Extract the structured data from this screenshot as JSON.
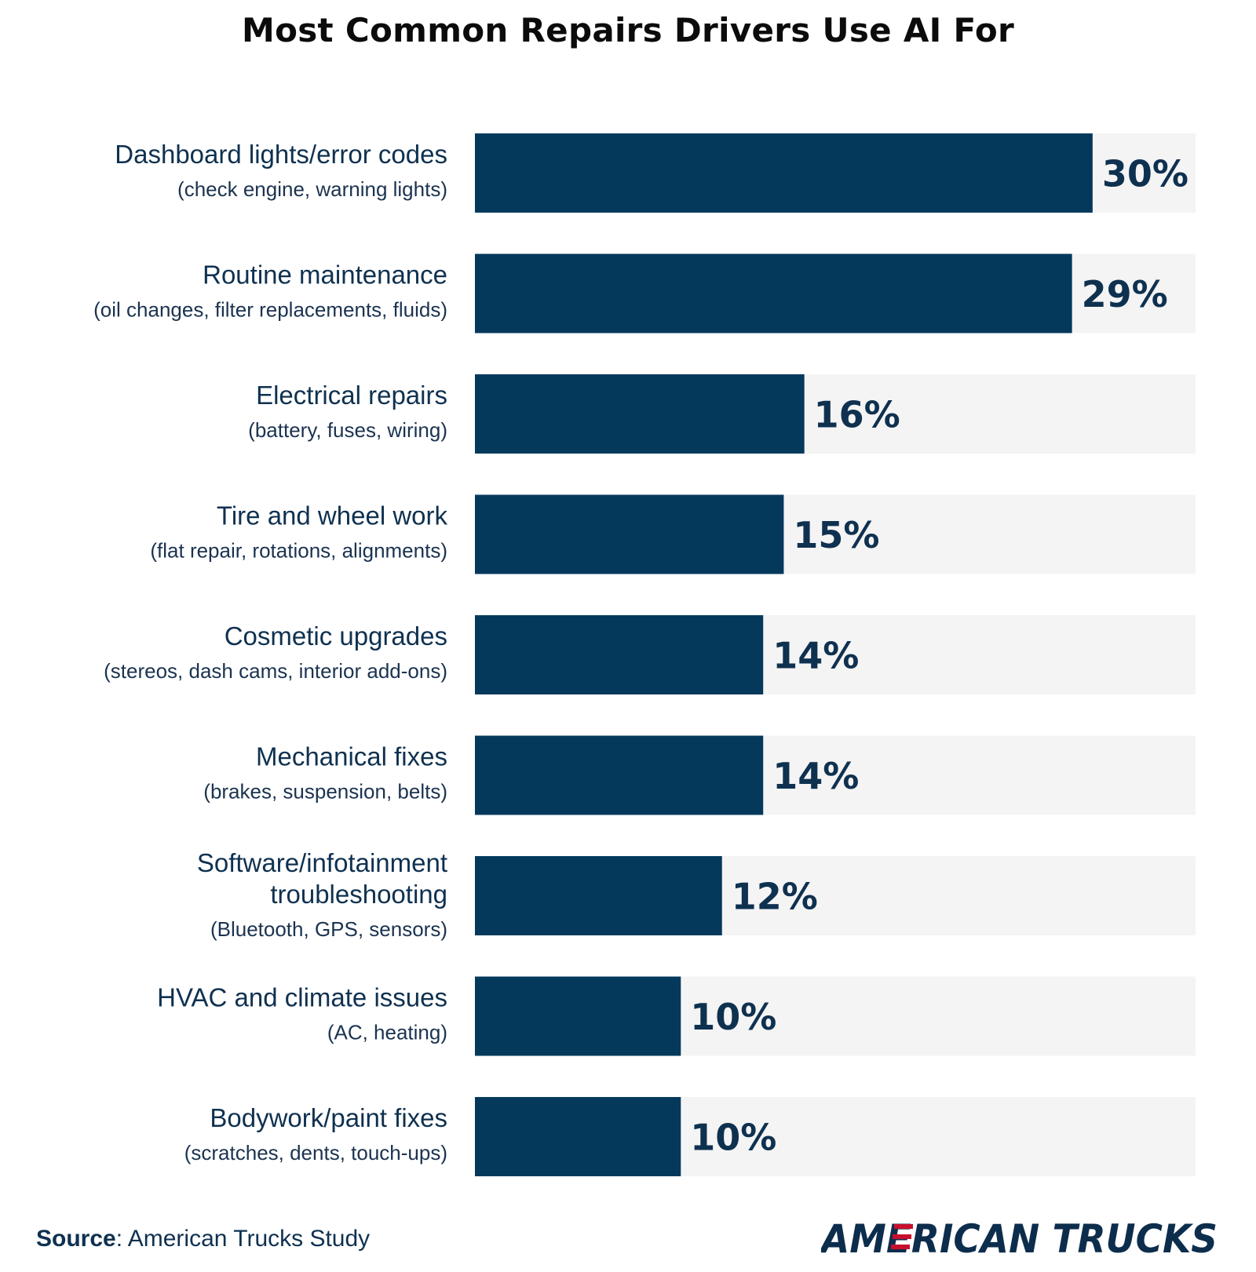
{
  "chart_data": {
    "type": "bar",
    "orientation": "horizontal",
    "title": "Most Common Repairs Drivers Use AI For",
    "categories": [
      {
        "label": [
          "Dashboard lights/error codes"
        ],
        "sub": "(check engine, warning lights)"
      },
      {
        "label": [
          "Routine maintenance"
        ],
        "sub": "(oil changes, filter replacements, fluids)"
      },
      {
        "label": [
          "Electrical repairs"
        ],
        "sub": "(battery, fuses, wiring)"
      },
      {
        "label": [
          "Tire and wheel work"
        ],
        "sub": "(flat repair, rotations, alignments)"
      },
      {
        "label": [
          "Cosmetic upgrades"
        ],
        "sub": "(stereos, dash cams, interior add-ons)"
      },
      {
        "label": [
          "Mechanical fixes"
        ],
        "sub": "(brakes, suspension, belts)"
      },
      {
        "label": [
          "Software/infotainment",
          "troubleshooting"
        ],
        "sub": "(Bluetooth, GPS, sensors)"
      },
      {
        "label": [
          "HVAC and climate issues"
        ],
        "sub": "(AC, heating)"
      },
      {
        "label": [
          "Bodywork/paint fixes"
        ],
        "sub": "(scratches, dents, touch-ups)"
      }
    ],
    "values": [
      30,
      29,
      16,
      15,
      14,
      14,
      12,
      10,
      10
    ],
    "value_labels": [
      "30%",
      "29%",
      "16%",
      "15%",
      "14%",
      "14%",
      "12%",
      "10%",
      "10%"
    ],
    "xlim": [
      0,
      35
    ],
    "grid": false,
    "legend": "none"
  },
  "colors": {
    "bar": "#04395c",
    "track": "#f4f4f4",
    "text": "#0f3150",
    "brand_navy": "#0d2d4c",
    "brand_red": "#c8102e"
  },
  "footer": {
    "source_label": "Source",
    "source_text": ": American Trucks Study",
    "brand_logo_text": "AMERICAN TRUCKS"
  }
}
